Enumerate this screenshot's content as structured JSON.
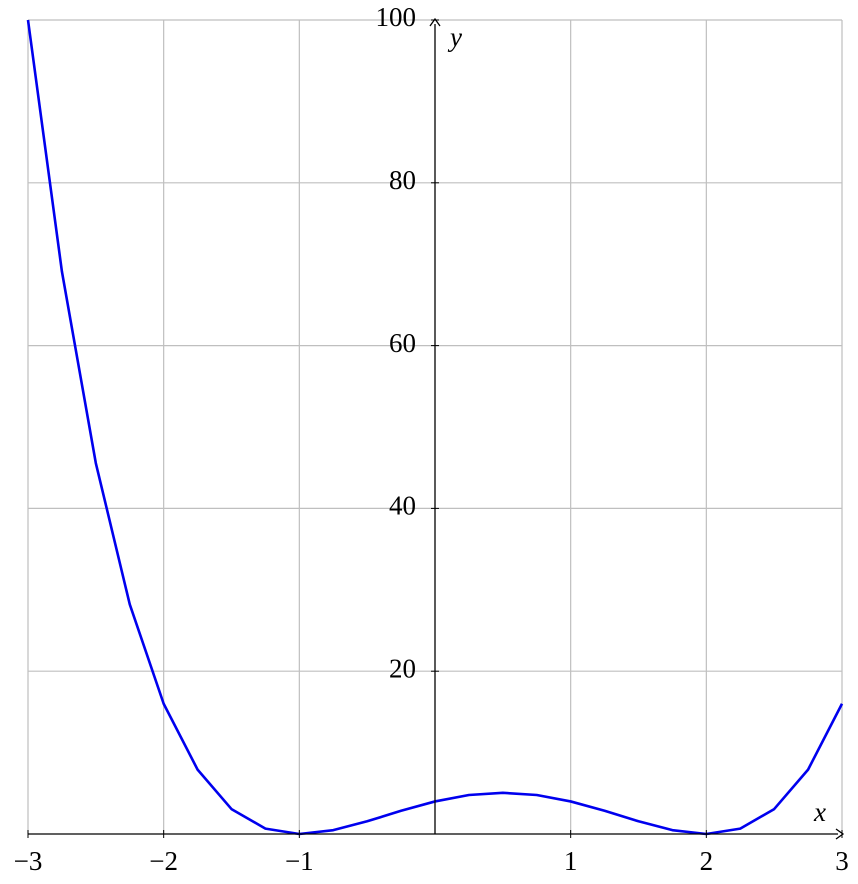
{
  "chart_data": {
    "type": "line",
    "x_label": "x",
    "y_label": "y",
    "x": [
      -3,
      -2.75,
      -2.5,
      -2.25,
      -2,
      -1.75,
      -1.5,
      -1.25,
      -1,
      -0.75,
      -0.5,
      -0.25,
      0,
      0.25,
      0.5,
      0.75,
      1,
      1.25,
      1.5,
      1.75,
      2,
      2.25,
      2.5,
      2.75,
      3
    ],
    "series": [
      {
        "color": "#0000ee",
        "values": [
          100,
          69.1,
          45.56,
          28.22,
          16,
          7.91,
          3.06,
          0.66,
          0,
          0.47,
          1.56,
          2.85,
          4,
          4.79,
          5.06,
          4.79,
          4,
          2.85,
          1.56,
          0.47,
          0,
          0.66,
          3.06,
          7.91,
          16
        ]
      }
    ],
    "xlim": [
      -3,
      3
    ],
    "ylim": [
      0,
      100
    ],
    "xticks": [
      {
        "value": -3,
        "label": "−3"
      },
      {
        "value": -2,
        "label": "−2"
      },
      {
        "value": -1,
        "label": "−1"
      },
      1,
      2,
      3
    ],
    "yticks": [
      20,
      40,
      60,
      80,
      100
    ],
    "grid": true
  }
}
